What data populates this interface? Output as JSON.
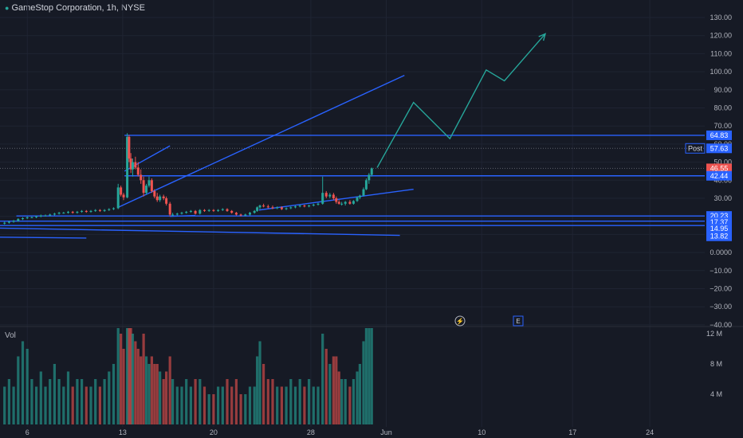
{
  "header": {
    "symbol_title": "GameStop Corporation, 1h, NYSE"
  },
  "volume_pane": {
    "label": "Vol"
  },
  "markers": [
    {
      "icon": "lightning-icon",
      "glyph": "⚡"
    },
    {
      "icon": "earnings-icon",
      "glyph": "E"
    }
  ],
  "colors": {
    "background": "#161a25",
    "up": "#26a69a",
    "down": "#ef5350",
    "drawing": "#2962ff",
    "projection": "#26a69a",
    "label_bg": "#2962ff"
  },
  "chart_data": {
    "type": "candlestick",
    "title": "GameStop Corporation, 1h, NYSE",
    "price_axis": {
      "ticks": [
        "130.00",
        "120.00",
        "110.00",
        "100.00",
        "90.00",
        "80.00",
        "70.00",
        "60.00",
        "50.00",
        "40.00",
        "30.00",
        "20.00",
        "10.00",
        "0.0000",
        "−10.00",
        "−20.00",
        "−30.00",
        "−40.00"
      ],
      "range": [
        -43,
        134
      ]
    },
    "time_axis": {
      "ticks": [
        "6",
        "13",
        "20",
        "28",
        "Jun",
        "10",
        "17",
        "24"
      ]
    },
    "volume_axis": {
      "ticks": [
        "12 M",
        "8 M",
        "4 M"
      ],
      "range": [
        0,
        16
      ]
    },
    "price_labels": [
      {
        "text": "64.83",
        "value": 64.83,
        "kind": "level"
      },
      {
        "text": "Post",
        "value": 57.63,
        "kind": "tag",
        "price": "57.63"
      },
      {
        "text": "46.55",
        "value": 46.55,
        "kind": "last"
      },
      {
        "text": "42.44",
        "value": 42.44,
        "kind": "level"
      },
      {
        "text": "20.23",
        "value": 20.23,
        "kind": "level"
      },
      {
        "text": "17.37",
        "value": 17.37,
        "kind": "level"
      },
      {
        "text": "14.95",
        "value": 14.95,
        "kind": "level"
      },
      {
        "text": "13.82",
        "value": 13.82,
        "kind": "level"
      }
    ],
    "levels": [
      {
        "value": 64.83,
        "from_day": 13.7
      },
      {
        "value": 42.44,
        "from_day": 13.7
      },
      {
        "value": 20.23,
        "from_day": 1.8
      },
      {
        "value": 17.37,
        "from_day": 0
      },
      {
        "value": 14.95,
        "from_day": 0
      }
    ],
    "trendlines": [
      {
        "points": [
          [
            13.0,
            25
          ],
          [
            44.5,
            98
          ]
        ]
      },
      {
        "points": [
          [
            13.7,
            45
          ],
          [
            18.7,
            59
          ]
        ]
      },
      {
        "points": [
          [
            0,
            13.5
          ],
          [
            44.0,
            9.5
          ]
        ]
      },
      {
        "points": [
          [
            0,
            8.5
          ],
          [
            9.5,
            8
          ]
        ]
      },
      {
        "points": [
          [
            28.5,
            23.5
          ],
          [
            45.5,
            35
          ]
        ]
      },
      {
        "points": [
          [
            18.7,
            20
          ],
          [
            21.5,
            20.5
          ]
        ]
      }
    ],
    "projection": [
      [
        41.5,
        47
      ],
      [
        45.5,
        83
      ],
      [
        49.5,
        63
      ],
      [
        53.5,
        101
      ],
      [
        55.5,
        95
      ],
      [
        60.0,
        121
      ]
    ],
    "candles": [
      [
        0.5,
        16,
        17,
        15.5,
        16.5,
        5
      ],
      [
        1.0,
        16.5,
        17.5,
        16,
        17,
        6
      ],
      [
        1.5,
        17,
        18,
        16.5,
        17.5,
        5
      ],
      [
        2.0,
        17.5,
        19,
        17,
        18.5,
        9
      ],
      [
        2.5,
        18.5,
        19.5,
        18,
        19,
        11
      ],
      [
        3.0,
        19,
        20,
        18.5,
        19.5,
        10
      ],
      [
        3.5,
        19.5,
        20,
        19,
        19.5,
        6
      ],
      [
        4.0,
        19.5,
        20.5,
        19,
        20,
        5
      ],
      [
        4.5,
        20,
        21,
        19.5,
        20.5,
        7
      ],
      [
        5.0,
        20.5,
        21,
        20,
        20.5,
        5
      ],
      [
        5.5,
        20.5,
        21.5,
        20,
        21,
        6
      ],
      [
        6.0,
        21,
        22,
        20.5,
        21.5,
        8
      ],
      [
        6.5,
        21.5,
        22.5,
        21,
        22,
        6
      ],
      [
        7.0,
        22,
        22.5,
        21.5,
        22,
        5
      ],
      [
        7.5,
        22,
        23,
        21.5,
        22.5,
        7
      ],
      [
        8.0,
        22.5,
        23,
        21.5,
        22,
        5
      ],
      [
        8.5,
        22,
        23,
        21.5,
        22.5,
        6
      ],
      [
        9.0,
        22.5,
        23.5,
        22,
        23,
        6
      ],
      [
        9.5,
        23,
        23.5,
        22,
        22.5,
        5
      ],
      [
        10.0,
        22.5,
        23.5,
        22,
        23,
        5
      ],
      [
        10.5,
        23,
        24,
        22.5,
        23.5,
        6
      ],
      [
        11.0,
        23.5,
        24,
        22.5,
        23,
        5
      ],
      [
        11.5,
        23,
        24,
        22.5,
        23.5,
        6
      ],
      [
        12.0,
        23.5,
        24.5,
        23,
        24,
        7
      ],
      [
        12.5,
        24,
        25,
        23.5,
        24.5,
        8
      ],
      [
        13.0,
        24.5,
        38,
        24,
        36,
        16
      ],
      [
        13.3,
        36,
        37,
        31,
        32,
        12
      ],
      [
        13.6,
        32,
        33,
        29,
        30.5,
        10
      ],
      [
        14.0,
        30.5,
        66,
        30,
        64,
        16
      ],
      [
        14.2,
        64,
        65,
        50,
        52,
        16
      ],
      [
        14.4,
        52,
        55,
        44,
        46,
        14
      ],
      [
        14.6,
        46,
        52,
        42,
        50,
        12
      ],
      [
        14.9,
        50,
        53,
        46,
        47,
        11
      ],
      [
        15.2,
        47,
        50,
        42,
        43,
        10
      ],
      [
        15.5,
        43,
        46,
        38,
        40,
        9
      ],
      [
        15.8,
        40,
        42,
        31,
        33,
        12
      ],
      [
        16.1,
        33,
        38,
        32,
        37,
        9
      ],
      [
        16.4,
        37,
        42,
        36,
        40,
        8
      ],
      [
        16.7,
        40,
        41,
        33,
        34,
        9
      ],
      [
        17.0,
        34,
        35,
        30,
        31,
        8
      ],
      [
        17.3,
        31,
        33,
        28,
        29,
        8
      ],
      [
        17.6,
        29,
        32,
        28,
        31,
        7
      ],
      [
        18.0,
        31,
        32,
        29,
        30,
        6
      ],
      [
        18.3,
        30,
        31,
        26,
        27,
        7
      ],
      [
        18.7,
        27,
        28,
        20,
        21,
        9
      ],
      [
        19.0,
        21,
        22,
        20,
        21,
        6
      ],
      [
        19.5,
        21,
        22,
        20.5,
        21.5,
        5
      ],
      [
        20.0,
        21.5,
        22.5,
        21,
        22,
        5
      ],
      [
        20.5,
        22,
        23,
        21.5,
        22.5,
        6
      ],
      [
        21.0,
        22.5,
        23.5,
        22,
        23,
        5
      ],
      [
        21.5,
        23,
        23.5,
        21,
        21.5,
        6
      ],
      [
        22.0,
        21.5,
        24,
        21,
        23.5,
        6
      ],
      [
        22.5,
        23.5,
        24,
        22.5,
        23,
        5
      ],
      [
        23.0,
        23,
        24,
        22.5,
        23.5,
        4
      ],
      [
        23.5,
        23.5,
        24,
        22.5,
        23,
        4
      ],
      [
        24.0,
        23,
        24,
        22.5,
        23.5,
        5
      ],
      [
        24.5,
        23.5,
        24.5,
        23,
        24,
        5
      ],
      [
        25.0,
        24,
        24.5,
        22.5,
        23,
        6
      ],
      [
        25.5,
        23,
        23.5,
        21.5,
        22,
        5
      ],
      [
        26.0,
        22,
        22.5,
        20.5,
        21,
        6
      ],
      [
        26.5,
        21,
        21.5,
        20,
        20.5,
        4
      ],
      [
        27.0,
        20.5,
        21.5,
        20,
        21,
        4
      ],
      [
        27.5,
        21,
        22.5,
        20.5,
        22,
        5
      ],
      [
        28.0,
        22,
        23.5,
        21.5,
        23,
        5
      ],
      [
        28.3,
        23,
        25.5,
        22.5,
        25,
        9
      ],
      [
        28.6,
        25,
        26.5,
        24,
        26,
        11
      ],
      [
        29.0,
        26,
        27,
        25,
        25.5,
        8
      ],
      [
        29.5,
        25.5,
        26.5,
        24.5,
        25,
        6
      ],
      [
        30.0,
        25,
        26,
        24,
        24.5,
        6
      ],
      [
        30.5,
        24.5,
        25.5,
        24,
        25,
        5
      ],
      [
        31.0,
        25,
        25.5,
        23.5,
        24,
        5
      ],
      [
        31.5,
        24,
        25,
        23.5,
        24.5,
        5
      ],
      [
        32.0,
        24.5,
        25.5,
        24,
        25,
        6
      ],
      [
        32.5,
        25,
        26,
        24.5,
        25.5,
        5
      ],
      [
        33.0,
        25.5,
        26.5,
        25,
        26,
        6
      ],
      [
        33.5,
        26,
        26.5,
        25,
        25.5,
        5
      ],
      [
        34.0,
        25.5,
        26.5,
        25,
        26,
        6
      ],
      [
        34.5,
        26,
        27,
        25.5,
        26.5,
        5
      ],
      [
        35.0,
        26.5,
        27.5,
        26,
        27,
        5
      ],
      [
        35.5,
        27,
        42,
        26.5,
        33,
        12
      ],
      [
        35.9,
        33,
        34,
        30,
        31,
        10
      ],
      [
        36.3,
        31,
        33,
        30,
        32,
        8
      ],
      [
        36.7,
        32,
        33,
        29,
        30,
        9
      ],
      [
        37.0,
        30,
        31,
        27,
        28,
        9
      ],
      [
        37.3,
        28,
        29,
        26.5,
        27,
        7
      ],
      [
        37.6,
        27,
        28,
        26,
        27,
        6
      ],
      [
        38.0,
        27,
        28.5,
        26,
        28,
        6
      ],
      [
        38.5,
        28,
        29,
        26.5,
        27,
        5
      ],
      [
        38.9,
        27,
        29,
        26.5,
        28.5,
        6
      ],
      [
        39.3,
        28.5,
        31,
        28,
        30.5,
        7
      ],
      [
        39.6,
        30.5,
        32,
        29.5,
        31.5,
        8
      ],
      [
        40.0,
        31.5,
        36,
        31,
        35,
        11
      ],
      [
        40.3,
        35,
        41,
        34.5,
        40,
        14
      ],
      [
        40.6,
        40,
        44,
        38,
        43,
        15
      ],
      [
        40.9,
        43,
        47,
        42,
        46.55,
        16
      ]
    ]
  }
}
